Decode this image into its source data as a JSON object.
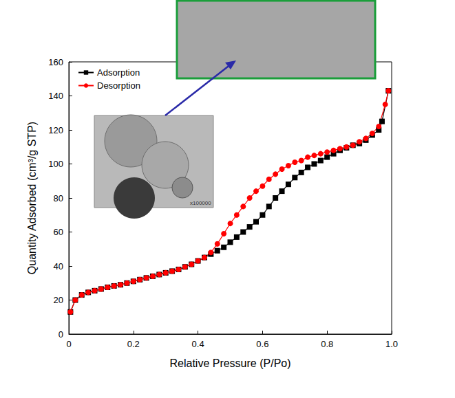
{
  "chart_data": {
    "type": "line",
    "x_label": "Relative Pressure (P/Po)",
    "y_label": "Quantity Adsorbed (cm³/g STP)",
    "xlim": [
      0,
      1
    ],
    "ylim": [
      0,
      160
    ],
    "xticks": [
      0,
      0.2,
      0.4,
      0.6,
      0.8,
      {
        "value": 1,
        "label": "1.0"
      }
    ],
    "yticks": [
      0,
      20,
      40,
      60,
      80,
      100,
      120,
      140,
      160
    ],
    "grid": false,
    "legend": "top-left",
    "annotations": [
      {
        "text": "x100000"
      }
    ],
    "series": [
      {
        "name": "Adsorption",
        "color": "#000000",
        "marker": "square",
        "line_style": "solid",
        "x": [
          0.005,
          0.02,
          0.04,
          0.06,
          0.08,
          0.1,
          0.12,
          0.14,
          0.16,
          0.18,
          0.2,
          0.22,
          0.24,
          0.26,
          0.28,
          0.3,
          0.32,
          0.34,
          0.36,
          0.38,
          0.4,
          0.42,
          0.44,
          0.46,
          0.48,
          0.5,
          0.52,
          0.54,
          0.56,
          0.58,
          0.6,
          0.62,
          0.64,
          0.66,
          0.68,
          0.7,
          0.72,
          0.74,
          0.76,
          0.78,
          0.8,
          0.82,
          0.84,
          0.86,
          0.88,
          0.9,
          0.92,
          0.94,
          0.96,
          0.97,
          0.99
        ],
        "values": [
          13,
          20,
          23,
          24.5,
          25.5,
          26.5,
          27.5,
          28.3,
          29,
          30,
          31,
          32,
          33,
          34,
          35,
          36,
          37,
          38,
          39.5,
          41,
          43,
          45,
          47,
          49,
          51,
          54,
          57,
          60,
          63,
          66,
          70,
          75,
          80,
          84,
          88,
          92,
          95,
          98,
          100,
          102,
          104,
          106,
          108,
          109.5,
          111,
          112,
          114,
          117,
          120,
          125,
          143
        ]
      },
      {
        "name": "Desorption",
        "color": "#ff0000",
        "marker": "circle",
        "line_style": "solid",
        "x": [
          0.99,
          0.98,
          0.96,
          0.94,
          0.92,
          0.9,
          0.88,
          0.86,
          0.84,
          0.82,
          0.8,
          0.78,
          0.76,
          0.74,
          0.72,
          0.7,
          0.68,
          0.66,
          0.64,
          0.62,
          0.6,
          0.58,
          0.56,
          0.54,
          0.52,
          0.5,
          0.48,
          0.46,
          0.44,
          0.42,
          0.4,
          0.38,
          0.36,
          0.34,
          0.32,
          0.3,
          0.28,
          0.26,
          0.24,
          0.22,
          0.2,
          0.18,
          0.16,
          0.14,
          0.12,
          0.1,
          0.08,
          0.06,
          0.04,
          0.02,
          0.005
        ],
        "values": [
          143,
          135,
          122,
          118,
          115,
          113,
          111,
          110,
          109,
          108,
          107,
          106,
          105,
          104,
          102,
          101,
          99,
          97,
          94,
          91,
          87,
          84,
          80,
          75,
          70,
          65,
          59,
          53,
          48,
          45,
          43,
          41,
          39.5,
          38,
          37,
          36,
          35,
          34,
          33,
          32,
          31,
          30,
          29,
          28.3,
          27.5,
          26.5,
          25.5,
          24.5,
          23,
          20,
          13
        ]
      }
    ]
  }
}
